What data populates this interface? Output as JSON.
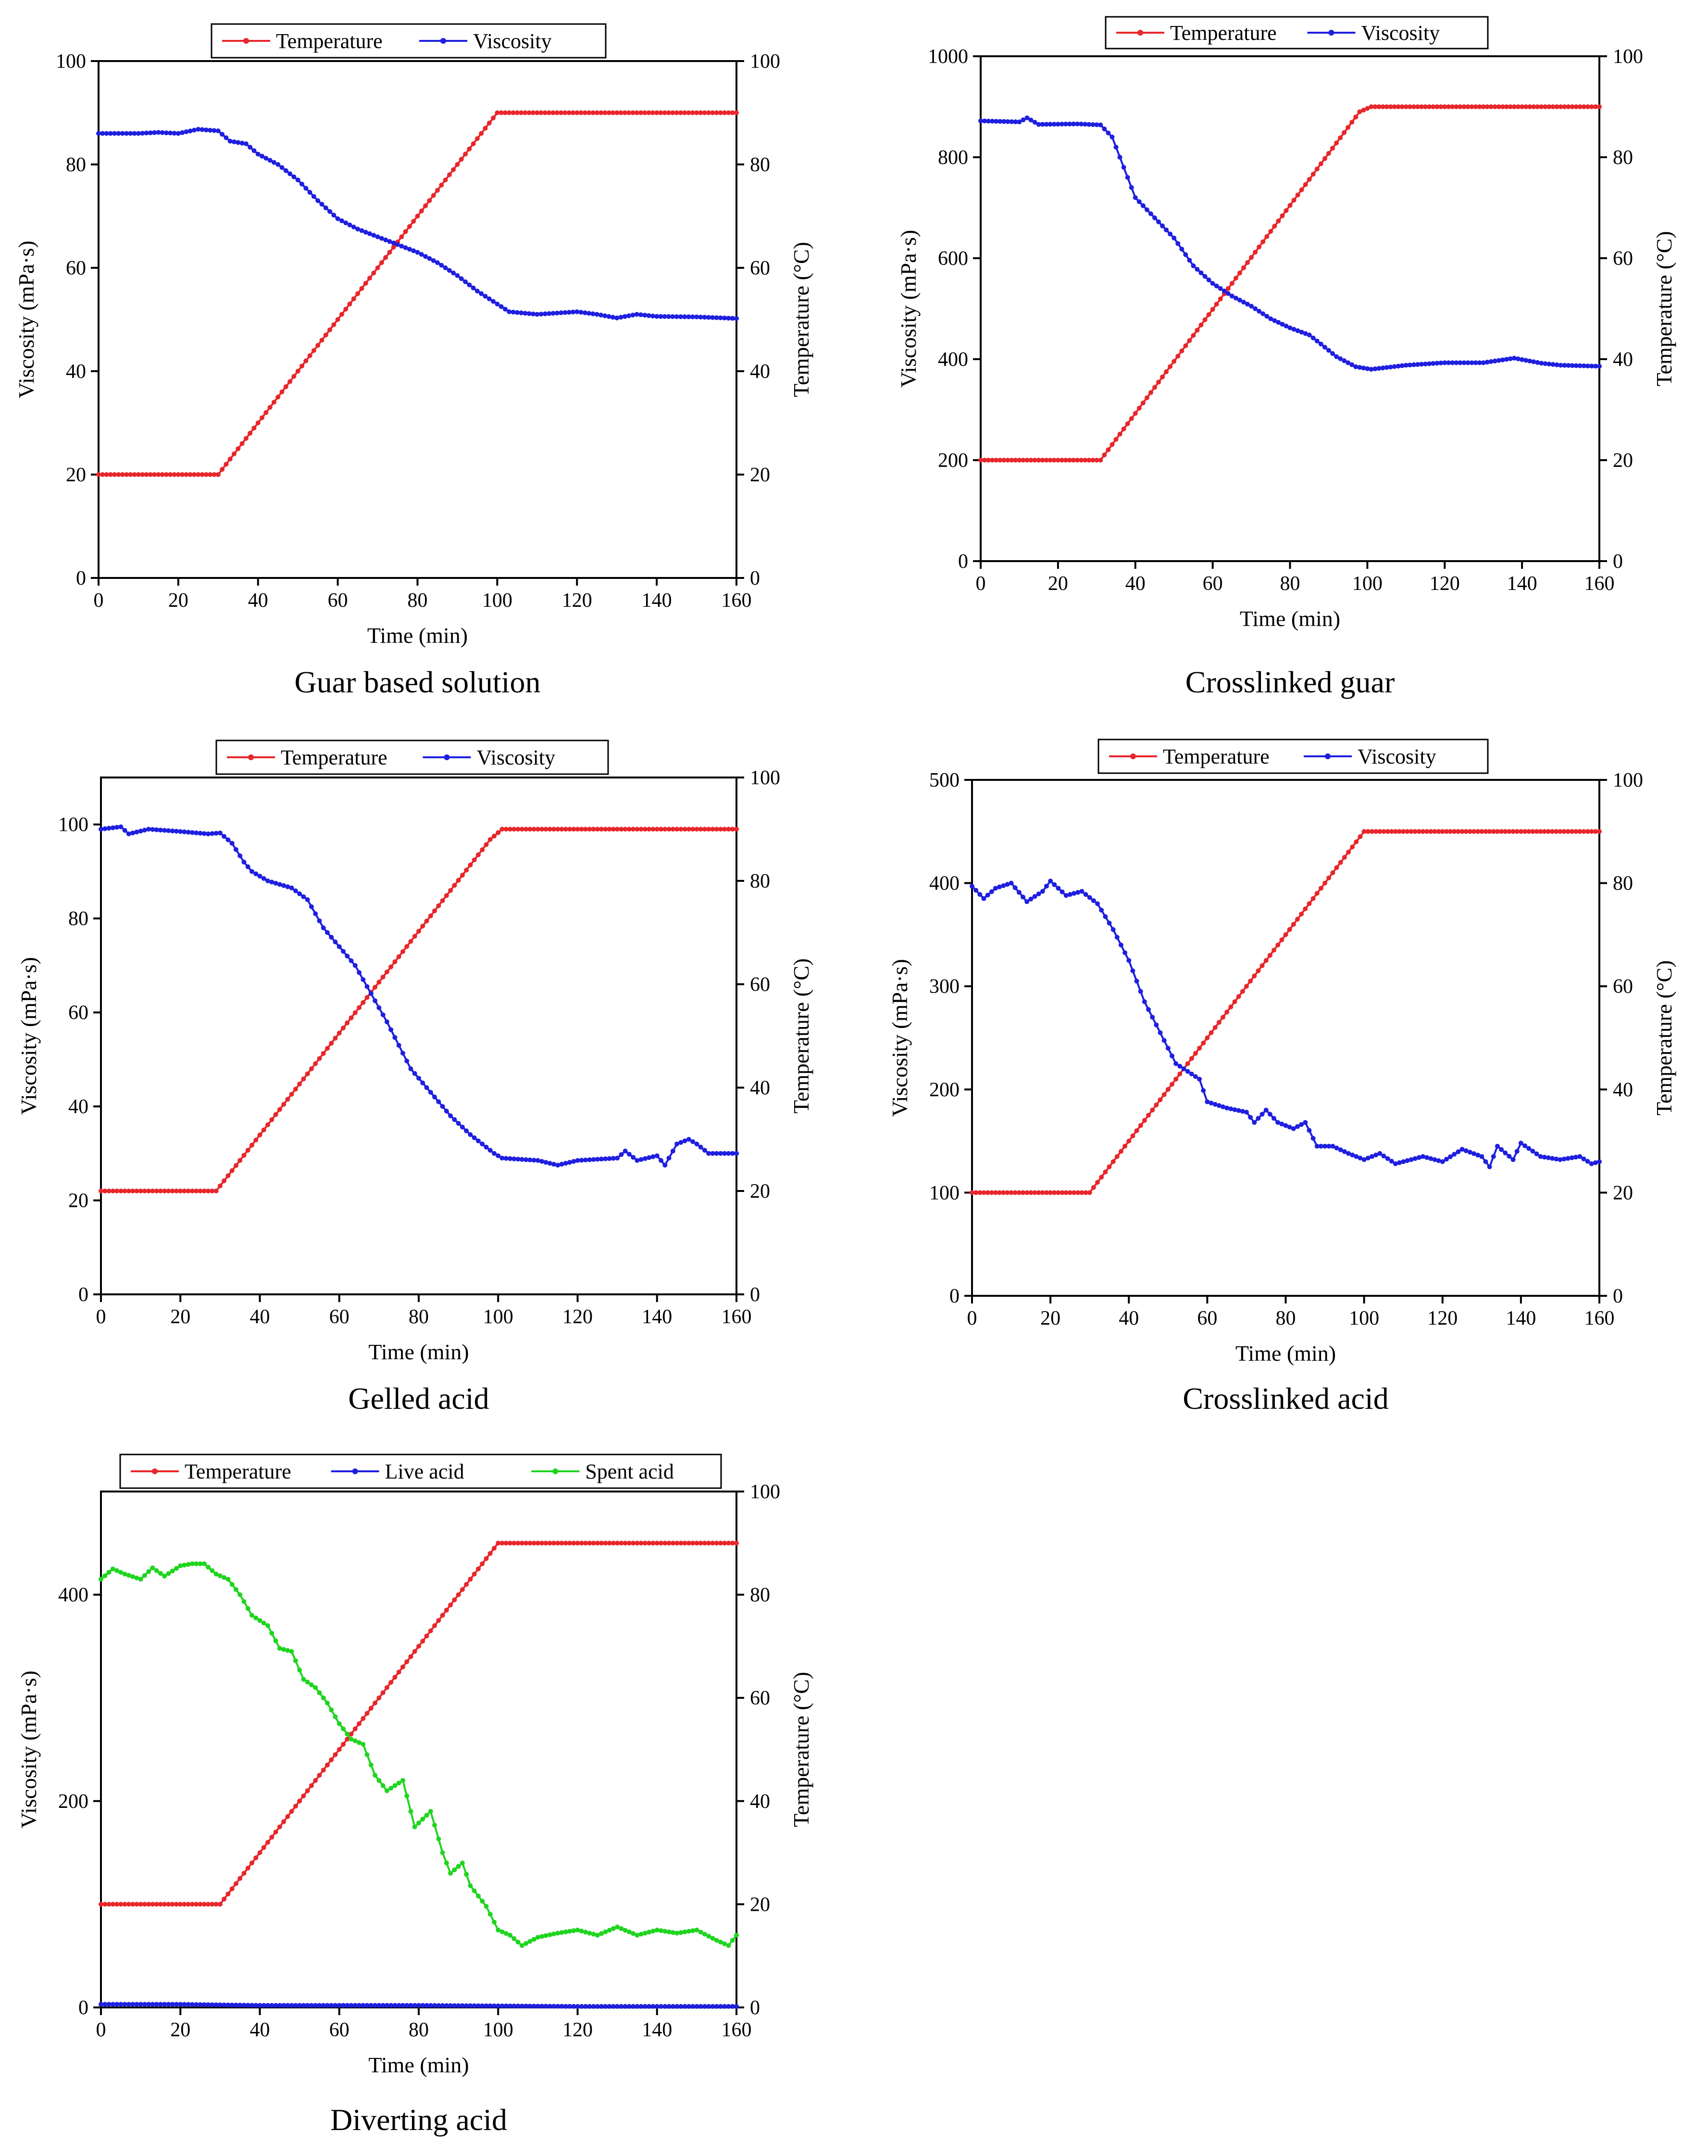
{
  "figure": {
    "colors": {
      "temperature": "#e8262b",
      "viscosity": "#1f1fe0",
      "live_acid": "#1f1fe0",
      "spent_acid": "#1fd51f",
      "axis": "#000000"
    }
  },
  "chart_data": [
    {
      "type": "line",
      "title": "Guar based solution",
      "xlabel": "Time (min)",
      "ylabel_left": "Viscosity (mPa·s)",
      "ylabel_right": "Temperature (°C)",
      "xlim": [
        0,
        160
      ],
      "ylim_left": [
        0,
        100
      ],
      "ylim_right": [
        0,
        100
      ],
      "xticks": [
        "0",
        "20",
        "40",
        "60",
        "80",
        "100",
        "120",
        "140",
        "160"
      ],
      "yticks_left": [
        "0",
        "20",
        "40",
        "60",
        "80",
        "100"
      ],
      "yticks_right": [
        "0",
        "20",
        "40",
        "60",
        "80",
        "100"
      ],
      "legend": [
        "Temperature",
        "Viscosity"
      ],
      "series": [
        {
          "name": "Temperature",
          "axis": "right",
          "color": "#e8262b",
          "points": [
            [
              0,
              20
            ],
            [
              30,
              20
            ],
            [
              100,
              90
            ],
            [
              160,
              90
            ]
          ]
        },
        {
          "name": "Viscosity",
          "axis": "left",
          "color": "#1f1fe0",
          "points": [
            [
              0,
              86
            ],
            [
              10,
              86
            ],
            [
              15,
              86.2
            ],
            [
              20,
              86
            ],
            [
              25,
              86.8
            ],
            [
              30,
              86.5
            ],
            [
              33,
              84.5
            ],
            [
              37,
              84
            ],
            [
              40,
              82
            ],
            [
              45,
              80
            ],
            [
              50,
              77
            ],
            [
              55,
              73
            ],
            [
              60,
              69.5
            ],
            [
              65,
              67.5
            ],
            [
              70,
              66
            ],
            [
              75,
              64.5
            ],
            [
              80,
              63
            ],
            [
              85,
              61
            ],
            [
              90,
              58.5
            ],
            [
              95,
              55.5
            ],
            [
              100,
              53
            ],
            [
              103,
              51.5
            ],
            [
              110,
              51
            ],
            [
              120,
              51.5
            ],
            [
              125,
              51
            ],
            [
              130,
              50.3
            ],
            [
              135,
              51
            ],
            [
              140,
              50.6
            ],
            [
              150,
              50.5
            ],
            [
              160,
              50.2
            ]
          ]
        }
      ]
    },
    {
      "type": "line",
      "title": "Crosslinked guar",
      "xlabel": "Time (min)",
      "ylabel_left": "Viscosity (mPa·s)",
      "ylabel_right": "Temperature (°C)",
      "xlim": [
        0,
        160
      ],
      "ylim_left": [
        0,
        1000
      ],
      "ylim_right": [
        0,
        100
      ],
      "xticks": [
        "0",
        "20",
        "40",
        "60",
        "80",
        "100",
        "120",
        "140",
        "160"
      ],
      "yticks_left": [
        "0",
        "200",
        "400",
        "600",
        "800",
        "1000"
      ],
      "yticks_right": [
        "0",
        "20",
        "40",
        "60",
        "80",
        "100"
      ],
      "legend": [
        "Temperature",
        "Viscosity"
      ],
      "series": [
        {
          "name": "Temperature",
          "axis": "right",
          "color": "#e8262b",
          "points": [
            [
              0,
              20
            ],
            [
              31,
              20
            ],
            [
              98,
              89
            ],
            [
              101,
              90
            ],
            [
              160,
              90
            ]
          ]
        },
        {
          "name": "Viscosity",
          "axis": "left",
          "color": "#1f1fe0",
          "points": [
            [
              0,
              872
            ],
            [
              10,
              870
            ],
            [
              12,
              878
            ],
            [
              15,
              865
            ],
            [
              25,
              866
            ],
            [
              31,
              864
            ],
            [
              34,
              840
            ],
            [
              37,
              780
            ],
            [
              40,
              720
            ],
            [
              45,
              680
            ],
            [
              50,
              640
            ],
            [
              55,
              585
            ],
            [
              60,
              550
            ],
            [
              65,
              525
            ],
            [
              70,
              505
            ],
            [
              75,
              480
            ],
            [
              80,
              462
            ],
            [
              85,
              448
            ],
            [
              88,
              430
            ],
            [
              92,
              405
            ],
            [
              97,
              385
            ],
            [
              101,
              380
            ],
            [
              110,
              388
            ],
            [
              120,
              393
            ],
            [
              130,
              393
            ],
            [
              138,
              402
            ],
            [
              145,
              392
            ],
            [
              150,
              388
            ],
            [
              160,
              386
            ]
          ]
        }
      ]
    },
    {
      "type": "line",
      "title": "Gelled acid",
      "xlabel": "Time (min)",
      "ylabel_left": "Viscosity (mPa·s)",
      "ylabel_right": "Temperature (°C)",
      "xlim": [
        0,
        160
      ],
      "ylim_left": [
        0,
        110
      ],
      "ylim_right": [
        0,
        100
      ],
      "xticks": [
        "0",
        "20",
        "40",
        "60",
        "80",
        "100",
        "120",
        "140",
        "160"
      ],
      "yticks_left": [
        "0",
        "20",
        "40",
        "60",
        "80",
        "100"
      ],
      "yticks_right": [
        "0",
        "20",
        "40",
        "60",
        "80",
        "100"
      ],
      "legend": [
        "Temperature",
        "Viscosity"
      ],
      "series": [
        {
          "name": "Temperature",
          "axis": "right",
          "color": "#e8262b",
          "points": [
            [
              0,
              20
            ],
            [
              29,
              20
            ],
            [
              98,
              88
            ],
            [
              101,
              90
            ],
            [
              160,
              90
            ]
          ]
        },
        {
          "name": "Viscosity",
          "axis": "left",
          "color": "#1f1fe0",
          "points": [
            [
              0,
              99
            ],
            [
              5,
              99.5
            ],
            [
              7,
              98
            ],
            [
              12,
              99
            ],
            [
              20,
              98.5
            ],
            [
              27,
              98
            ],
            [
              30,
              98.2
            ],
            [
              33,
              96
            ],
            [
              36,
              92
            ],
            [
              38,
              90
            ],
            [
              42,
              88
            ],
            [
              48,
              86.5
            ],
            [
              52,
              84
            ],
            [
              56,
              78
            ],
            [
              60,
              74
            ],
            [
              64,
              70
            ],
            [
              68,
              64
            ],
            [
              72,
              58
            ],
            [
              78,
              48
            ],
            [
              84,
              42
            ],
            [
              88,
              38
            ],
            [
              93,
              34
            ],
            [
              96,
              32
            ],
            [
              99,
              30
            ],
            [
              101,
              29
            ],
            [
              110,
              28.5
            ],
            [
              115,
              27.5
            ],
            [
              120,
              28.5
            ],
            [
              130,
              29
            ],
            [
              132,
              30.5
            ],
            [
              135,
              28.5
            ],
            [
              140,
              29.5
            ],
            [
              142,
              27.5
            ],
            [
              145,
              32
            ],
            [
              148,
              33
            ],
            [
              150,
              32
            ],
            [
              153,
              30
            ],
            [
              160,
              30
            ]
          ]
        }
      ]
    },
    {
      "type": "line",
      "title": "Crosslinked acid",
      "xlabel": "Time (min)",
      "ylabel_left": "Viscosity (mPa·s)",
      "ylabel_right": "Temperature (°C)",
      "xlim": [
        0,
        160
      ],
      "ylim_left": [
        0,
        500
      ],
      "ylim_right": [
        0,
        100
      ],
      "xticks": [
        "0",
        "20",
        "40",
        "60",
        "80",
        "100",
        "120",
        "140",
        "160"
      ],
      "yticks_left": [
        "0",
        "100",
        "200",
        "300",
        "400",
        "500"
      ],
      "yticks_right": [
        "0",
        "20",
        "40",
        "60",
        "80",
        "100"
      ],
      "legend": [
        "Temperature",
        "Viscosity"
      ],
      "series": [
        {
          "name": "Temperature",
          "axis": "right",
          "color": "#e8262b",
          "points": [
            [
              0,
              20
            ],
            [
              30,
              20
            ],
            [
              100,
              90
            ],
            [
              160,
              90
            ]
          ]
        },
        {
          "name": "Viscosity",
          "axis": "left",
          "color": "#1f1fe0",
          "points": [
            [
              0,
              397
            ],
            [
              3,
              385
            ],
            [
              6,
              395
            ],
            [
              10,
              400
            ],
            [
              14,
              382
            ],
            [
              18,
              392
            ],
            [
              20,
              402
            ],
            [
              24,
              388
            ],
            [
              28,
              392
            ],
            [
              32,
              380
            ],
            [
              36,
              355
            ],
            [
              40,
              325
            ],
            [
              44,
              285
            ],
            [
              48,
              255
            ],
            [
              52,
              225
            ],
            [
              56,
              215
            ],
            [
              58,
              210
            ],
            [
              60,
              188
            ],
            [
              65,
              182
            ],
            [
              70,
              178
            ],
            [
              72,
              168
            ],
            [
              75,
              180
            ],
            [
              78,
              168
            ],
            [
              82,
              162
            ],
            [
              85,
              168
            ],
            [
              88,
              145
            ],
            [
              92,
              145
            ],
            [
              96,
              138
            ],
            [
              100,
              132
            ],
            [
              104,
              138
            ],
            [
              108,
              128
            ],
            [
              115,
              135
            ],
            [
              120,
              130
            ],
            [
              125,
              142
            ],
            [
              130,
              135
            ],
            [
              132,
              125
            ],
            [
              134,
              145
            ],
            [
              138,
              132
            ],
            [
              140,
              148
            ],
            [
              145,
              135
            ],
            [
              150,
              132
            ],
            [
              155,
              135
            ],
            [
              158,
              128
            ],
            [
              160,
              130
            ]
          ]
        }
      ]
    },
    {
      "type": "line",
      "title": "Diverting acid",
      "xlabel": "Time (min)",
      "ylabel_left": "Viscosity (mPa·s)",
      "ylabel_right": "Temperature (°C)",
      "xlim": [
        0,
        160
      ],
      "ylim_left": [
        0,
        500
      ],
      "ylim_right": [
        0,
        100
      ],
      "xticks": [
        "0",
        "20",
        "40",
        "60",
        "80",
        "100",
        "120",
        "140",
        "160"
      ],
      "yticks_left": [
        "0",
        "200",
        "400"
      ],
      "yticks_right": [
        "0",
        "20",
        "40",
        "60",
        "80",
        "100"
      ],
      "legend": [
        "Temperature",
        "Live acid",
        "Spent acid"
      ],
      "series": [
        {
          "name": "Temperature",
          "axis": "right",
          "color": "#e8262b",
          "points": [
            [
              0,
              20
            ],
            [
              30,
              20
            ],
            [
              100,
              90
            ],
            [
              160,
              90
            ]
          ]
        },
        {
          "name": "Live acid",
          "axis": "left",
          "color": "#1f1fe0",
          "points": [
            [
              0,
              3
            ],
            [
              20,
              3
            ],
            [
              40,
              2
            ],
            [
              80,
              2
            ],
            [
              120,
              1
            ],
            [
              160,
              1
            ]
          ]
        },
        {
          "name": "Spent acid",
          "axis": "left",
          "color": "#1fd51f",
          "points": [
            [
              0,
              415
            ],
            [
              3,
              425
            ],
            [
              6,
              420
            ],
            [
              10,
              415
            ],
            [
              13,
              426
            ],
            [
              16,
              418
            ],
            [
              20,
              428
            ],
            [
              23,
              430
            ],
            [
              26,
              430
            ],
            [
              29,
              420
            ],
            [
              32,
              415
            ],
            [
              35,
              400
            ],
            [
              38,
              380
            ],
            [
              42,
              370
            ],
            [
              45,
              348
            ],
            [
              48,
              345
            ],
            [
              51,
              318
            ],
            [
              54,
              310
            ],
            [
              57,
              295
            ],
            [
              60,
              275
            ],
            [
              63,
              260
            ],
            [
              66,
              255
            ],
            [
              69,
              225
            ],
            [
              72,
              210
            ],
            [
              76,
              220
            ],
            [
              79,
              175
            ],
            [
              83,
              190
            ],
            [
              86,
              150
            ],
            [
              88,
              130
            ],
            [
              91,
              140
            ],
            [
              93,
              118
            ],
            [
              97,
              98
            ],
            [
              100,
              75
            ],
            [
              103,
              70
            ],
            [
              106,
              60
            ],
            [
              110,
              68
            ],
            [
              115,
              72
            ],
            [
              120,
              75
            ],
            [
              125,
              70
            ],
            [
              130,
              78
            ],
            [
              135,
              70
            ],
            [
              140,
              75
            ],
            [
              145,
              72
            ],
            [
              150,
              75
            ],
            [
              155,
              65
            ],
            [
              158,
              60
            ],
            [
              160,
              70
            ]
          ]
        }
      ]
    }
  ]
}
